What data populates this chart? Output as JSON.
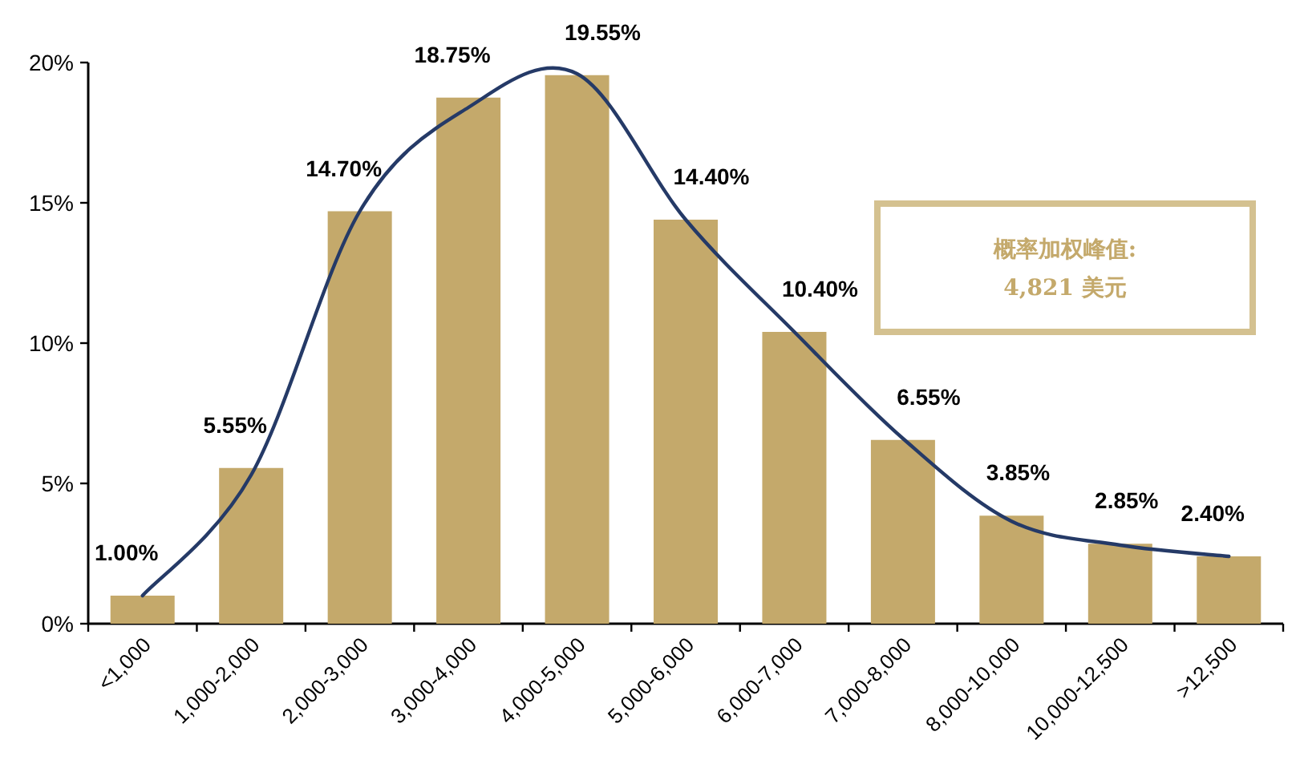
{
  "chart_data": {
    "type": "bar",
    "categories": [
      "<1,000",
      "1,000-2,000",
      "2,000-3,000",
      "3,000-4,000",
      "4,000-5,000",
      "5,000-6,000",
      "6,000-7,000",
      "7,000-8,000",
      "8,000-10,000",
      "10,000-12,500",
      ">12,500"
    ],
    "ylim": [
      0,
      20
    ],
    "yticks": [
      {
        "value": 0,
        "label": "0%"
      },
      {
        "value": 5,
        "label": "5%"
      },
      {
        "value": 10,
        "label": "10%"
      },
      {
        "value": 15,
        "label": "15%"
      },
      {
        "value": 20,
        "label": "20%"
      }
    ],
    "series": [
      {
        "color": "#c4a96b",
        "values": [
          1.0,
          5.55,
          14.7,
          18.75,
          19.55,
          14.4,
          10.4,
          6.55,
          3.85,
          2.85,
          2.4
        ],
        "value_labels": [
          "1.00%",
          "5.55%",
          "14.70%",
          "18.75%",
          "19.55%",
          "14.40%",
          "10.40%",
          "6.55%",
          "3.85%",
          "2.85%",
          "2.40%"
        ]
      },
      {
        "type": "line",
        "color": "#253a67",
        "values": [
          1.0,
          5.3,
          14.7,
          18.4,
          19.6,
          14.4,
          10.4,
          6.6,
          3.65,
          2.8,
          2.4
        ]
      }
    ],
    "annotations": [
      "概率加权峰值:",
      "4,821 美元"
    ]
  }
}
